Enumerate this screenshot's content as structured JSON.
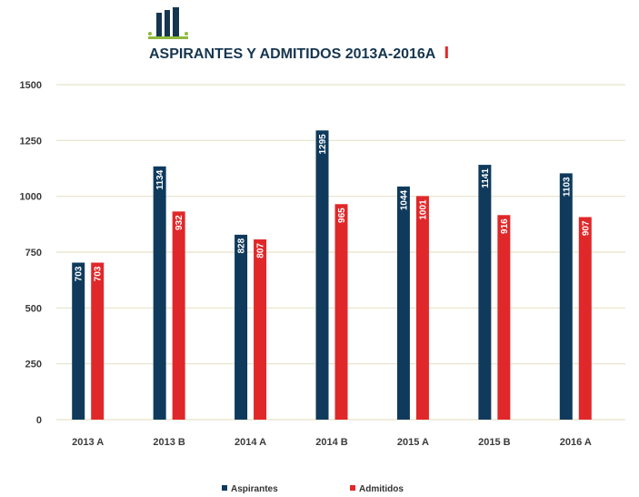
{
  "colors": {
    "aspirantes": "#0f3a5c",
    "admitidos": "#e0282a",
    "title": "#16364f",
    "accent": "#e0282a",
    "grid": "#e6e2c8",
    "icon_green": "#8fb93b"
  },
  "chart_data": {
    "type": "bar",
    "title": "ASPIRANTES Y ADMITIDOS 2013A-2016A",
    "categories": [
      "2013 A",
      "2013 B",
      "2014 A",
      "2014 B",
      "2015 A",
      "2015 B",
      "2016 A"
    ],
    "series": [
      {
        "name": "Aspirantes",
        "values": [
          703,
          1134,
          828,
          1295,
          1044,
          1141,
          1103
        ]
      },
      {
        "name": "Admitidos",
        "values": [
          703,
          932,
          807,
          965,
          1001,
          916,
          907
        ]
      }
    ],
    "ylim": [
      0,
      1500
    ],
    "yticks": [
      0,
      250,
      500,
      750,
      1000,
      1250,
      1500
    ],
    "grid": true,
    "legend": "bottom"
  }
}
